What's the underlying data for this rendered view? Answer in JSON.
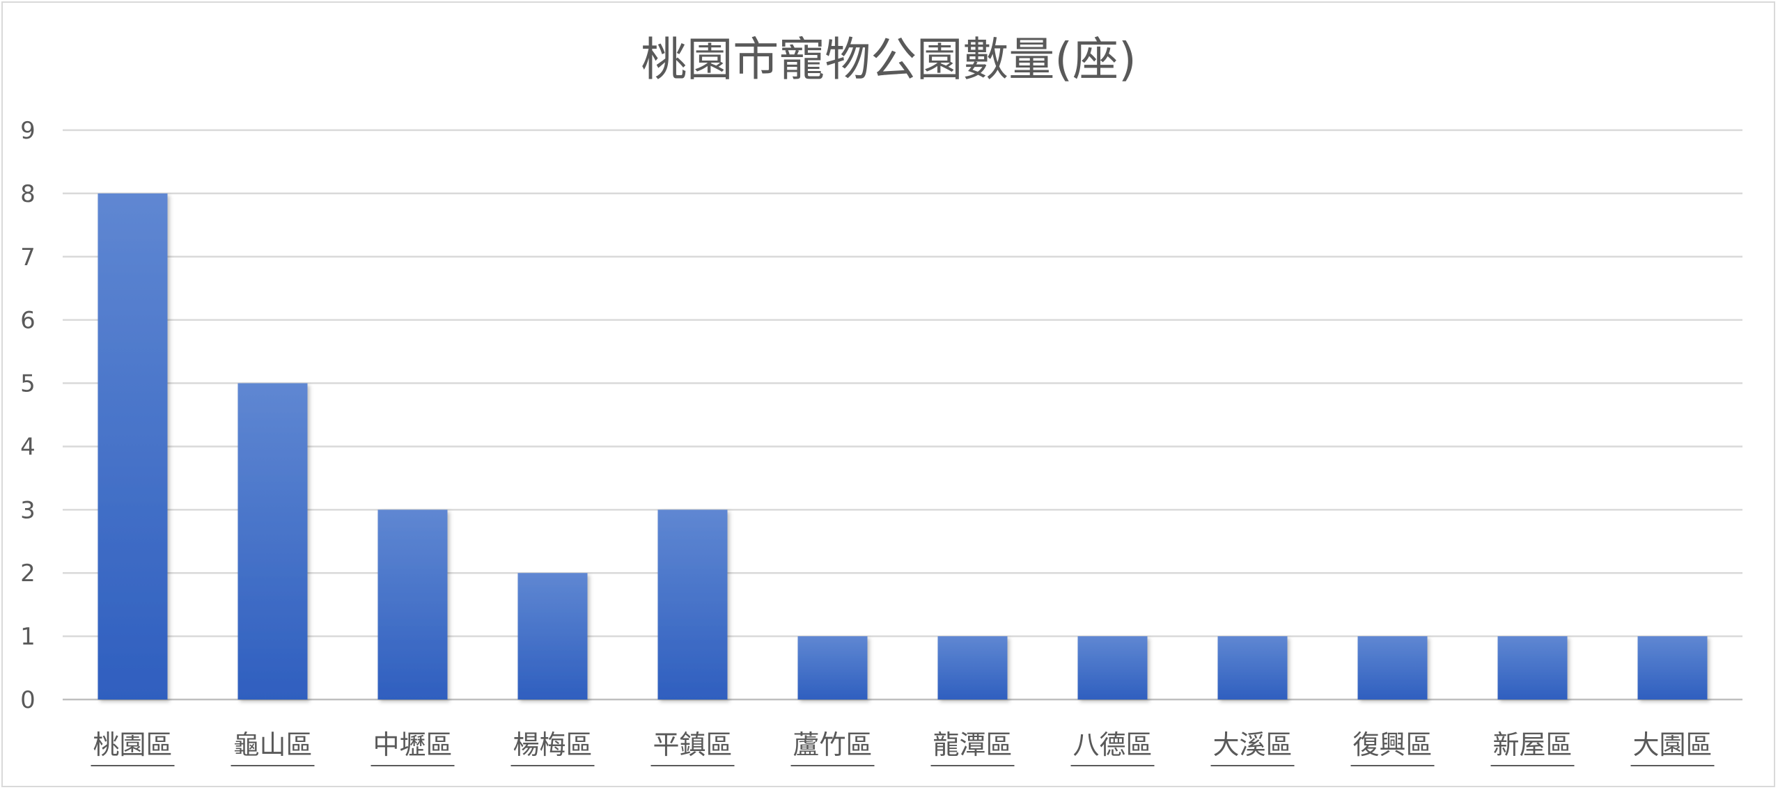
{
  "chart_data": {
    "type": "bar",
    "title": "桃園市寵物公園數量(座)",
    "categories": [
      "桃園區",
      "龜山區",
      "中壢區",
      "楊梅區",
      "平鎮區",
      "蘆竹區",
      "龍潭區",
      "八德區",
      "大溪區",
      "復興區",
      "新屋區",
      "大園區"
    ],
    "values": [
      8,
      5,
      3,
      2,
      3,
      1,
      1,
      1,
      1,
      1,
      1,
      1
    ],
    "ylim": [
      0,
      9
    ],
    "yticks": [
      "0",
      "1",
      "2",
      "3",
      "4",
      "5",
      "6",
      "7",
      "8",
      "9"
    ],
    "grid": true,
    "legend": "none",
    "colors": {
      "bar_top": "#5f87d2",
      "bar_bottom": "#2f5fbf"
    }
  }
}
